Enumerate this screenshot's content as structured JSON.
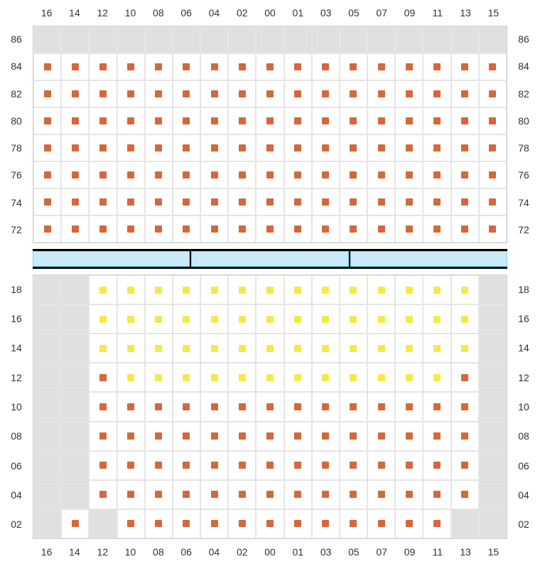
{
  "colors": {
    "orange": "#d5683a",
    "yellow": "#f5e94a",
    "gray_bg": "#e0e0e0",
    "grid_border": "#e5e5e5",
    "divider_bg": "#c8ebf9",
    "divider_border": "#88d0ee",
    "text": "#333333"
  },
  "columns": [
    "16",
    "14",
    "12",
    "10",
    "08",
    "06",
    "04",
    "02",
    "00",
    "01",
    "03",
    "05",
    "07",
    "09",
    "11",
    "13",
    "15"
  ],
  "top_section": {
    "rows": [
      "86",
      "84",
      "82",
      "80",
      "78",
      "76",
      "74",
      "72"
    ],
    "cells": [
      [
        "g",
        "g",
        "g",
        "g",
        "g",
        "g",
        "g",
        "g",
        "g",
        "g",
        "g",
        "g",
        "g",
        "g",
        "g",
        "g",
        "g"
      ],
      [
        "o",
        "o",
        "o",
        "o",
        "o",
        "o",
        "o",
        "o",
        "o",
        "o",
        "o",
        "o",
        "o",
        "o",
        "o",
        "o",
        "o"
      ],
      [
        "o",
        "o",
        "o",
        "o",
        "o",
        "o",
        "o",
        "o",
        "o",
        "o",
        "o",
        "o",
        "o",
        "o",
        "o",
        "o",
        "o"
      ],
      [
        "o",
        "o",
        "o",
        "o",
        "o",
        "o",
        "o",
        "o",
        "o",
        "o",
        "o",
        "o",
        "o",
        "o",
        "o",
        "o",
        "o"
      ],
      [
        "o",
        "o",
        "o",
        "o",
        "o",
        "o",
        "o",
        "o",
        "o",
        "o",
        "o",
        "o",
        "o",
        "o",
        "o",
        "o",
        "o"
      ],
      [
        "o",
        "o",
        "o",
        "o",
        "o",
        "o",
        "o",
        "o",
        "o",
        "o",
        "o",
        "o",
        "o",
        "o",
        "o",
        "o",
        "o"
      ],
      [
        "o",
        "o",
        "o",
        "o",
        "o",
        "o",
        "o",
        "o",
        "o",
        "o",
        "o",
        "o",
        "o",
        "o",
        "o",
        "o",
        "o"
      ],
      [
        "o",
        "o",
        "o",
        "o",
        "o",
        "o",
        "o",
        "o",
        "o",
        "o",
        "o",
        "o",
        "o",
        "o",
        "o",
        "o",
        "o"
      ]
    ]
  },
  "bottom_section": {
    "rows": [
      "18",
      "16",
      "14",
      "12",
      "10",
      "08",
      "06",
      "04",
      "02"
    ],
    "cells": [
      [
        "g",
        "g",
        "y",
        "y",
        "y",
        "y",
        "y",
        "y",
        "y",
        "y",
        "y",
        "y",
        "y",
        "y",
        "y",
        "y",
        "g"
      ],
      [
        "g",
        "g",
        "y",
        "y",
        "y",
        "y",
        "y",
        "y",
        "y",
        "y",
        "y",
        "y",
        "y",
        "y",
        "y",
        "y",
        "g"
      ],
      [
        "g",
        "g",
        "y",
        "y",
        "y",
        "y",
        "y",
        "y",
        "y",
        "y",
        "y",
        "y",
        "y",
        "y",
        "y",
        "y",
        "g"
      ],
      [
        "g",
        "g",
        "o",
        "y",
        "y",
        "y",
        "y",
        "y",
        "y",
        "y",
        "y",
        "y",
        "y",
        "y",
        "y",
        "o",
        "g"
      ],
      [
        "g",
        "g",
        "o",
        "o",
        "o",
        "o",
        "o",
        "o",
        "o",
        "o",
        "o",
        "o",
        "o",
        "o",
        "o",
        "o",
        "g"
      ],
      [
        "g",
        "g",
        "o",
        "o",
        "o",
        "o",
        "o",
        "o",
        "o",
        "o",
        "o",
        "o",
        "o",
        "o",
        "o",
        "o",
        "g"
      ],
      [
        "g",
        "g",
        "o",
        "o",
        "o",
        "o",
        "o",
        "o",
        "o",
        "o",
        "o",
        "o",
        "o",
        "o",
        "o",
        "o",
        "g"
      ],
      [
        "g",
        "g",
        "o",
        "o",
        "o",
        "o",
        "o",
        "o",
        "o",
        "o",
        "o",
        "o",
        "o",
        "o",
        "o",
        "o",
        "g"
      ],
      [
        "g",
        "o",
        "g",
        "o",
        "o",
        "o",
        "o",
        "o",
        "o",
        "o",
        "o",
        "o",
        "o",
        "o",
        "o",
        "g",
        "g"
      ]
    ]
  }
}
